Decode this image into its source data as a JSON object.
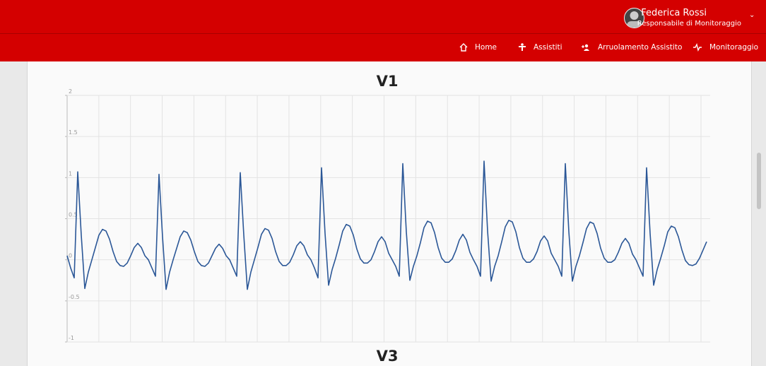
{
  "header": {
    "user_name": "Federica Rossi",
    "user_role": "Responsabile di Monitoraggio"
  },
  "nav": [
    "Home",
    "Assistiti",
    "Arruolamento Assistito",
    "Monitoraggio"
  ],
  "chart_data": [
    {
      "type": "line",
      "title": "V1",
      "color": "#2b5797",
      "ylim": [
        -1,
        2
      ],
      "yticks": [
        -1,
        -0.5,
        0,
        0.5,
        1,
        1.5,
        2
      ],
      "grid": true,
      "values": [
        0.05,
        -0.1,
        -0.22,
        1.07,
        0.3,
        -0.35,
        -0.15,
        0.0,
        0.15,
        0.3,
        0.37,
        0.35,
        0.25,
        0.1,
        -0.02,
        -0.07,
        -0.08,
        -0.04,
        0.05,
        0.15,
        0.2,
        0.15,
        0.05,
        0.0,
        -0.1,
        -0.2,
        1.04,
        0.28,
        -0.36,
        -0.15,
        0.0,
        0.14,
        0.28,
        0.35,
        0.33,
        0.24,
        0.1,
        -0.02,
        -0.07,
        -0.08,
        -0.04,
        0.05,
        0.14,
        0.19,
        0.14,
        0.05,
        0.0,
        -0.1,
        -0.2,
        1.06,
        0.3,
        -0.36,
        -0.15,
        0.0,
        0.15,
        0.31,
        0.38,
        0.36,
        0.26,
        0.1,
        -0.02,
        -0.07,
        -0.07,
        -0.03,
        0.06,
        0.17,
        0.22,
        0.17,
        0.06,
        0.0,
        -0.1,
        -0.22,
        1.12,
        0.32,
        -0.31,
        -0.12,
        0.02,
        0.18,
        0.35,
        0.43,
        0.41,
        0.3,
        0.13,
        0.01,
        -0.04,
        -0.04,
        0.0,
        0.1,
        0.22,
        0.28,
        0.22,
        0.08,
        0.0,
        -0.08,
        -0.2,
        1.17,
        0.34,
        -0.25,
        -0.08,
        0.05,
        0.21,
        0.39,
        0.47,
        0.45,
        0.33,
        0.15,
        0.02,
        -0.03,
        -0.03,
        0.01,
        0.11,
        0.24,
        0.31,
        0.24,
        0.09,
        0.0,
        -0.08,
        -0.2,
        1.2,
        0.35,
        -0.26,
        -0.08,
        0.05,
        0.22,
        0.4,
        0.48,
        0.46,
        0.34,
        0.15,
        0.02,
        -0.03,
        -0.03,
        0.01,
        0.1,
        0.23,
        0.29,
        0.23,
        0.08,
        0.0,
        -0.08,
        -0.2,
        1.17,
        0.34,
        -0.26,
        -0.08,
        0.05,
        0.21,
        0.38,
        0.46,
        0.44,
        0.32,
        0.14,
        0.02,
        -0.03,
        -0.03,
        0.0,
        0.09,
        0.2,
        0.26,
        0.2,
        0.07,
        0.0,
        -0.1,
        -0.2,
        1.12,
        0.32,
        -0.31,
        -0.12,
        0.02,
        0.17,
        0.34,
        0.41,
        0.39,
        0.28,
        0.12,
        -0.01,
        -0.06,
        -0.07,
        -0.05,
        0.02,
        0.12,
        0.22
      ]
    },
    {
      "type": "line",
      "title": "V3"
    }
  ]
}
